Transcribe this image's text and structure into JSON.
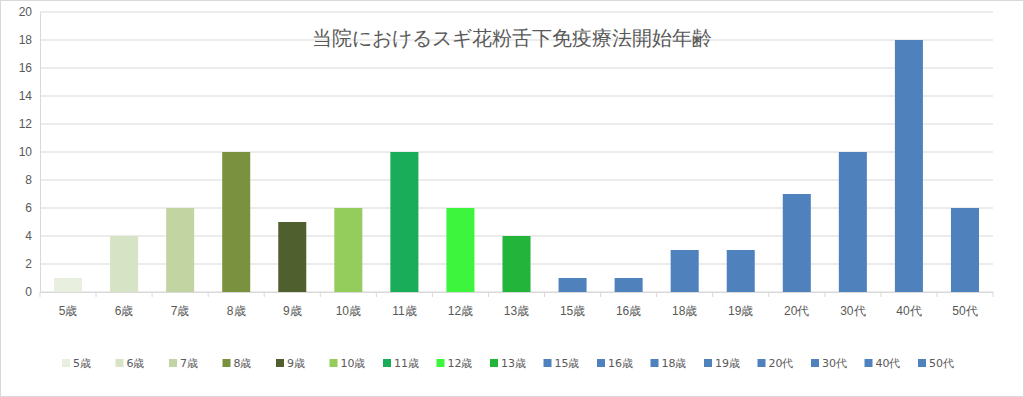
{
  "chart_data": {
    "type": "bar",
    "title": "当院におけるスギ花粉舌下免疫療法開始年齢",
    "categories": [
      "5歳",
      "6歳",
      "7歳",
      "8歳",
      "9歳",
      "10歳",
      "11歳",
      "12歳",
      "13歳",
      "15歳",
      "16歳",
      "18歳",
      "19歳",
      "20代",
      "30代",
      "40代",
      "50代"
    ],
    "values": [
      1,
      4,
      6,
      10,
      5,
      6,
      10,
      6,
      4,
      1,
      1,
      3,
      3,
      7,
      10,
      18,
      6
    ],
    "colors": [
      "#e8efdf",
      "#d6e3c5",
      "#c3d4a3",
      "#7a923f",
      "#4f5f2d",
      "#94cd5b",
      "#1aad59",
      "#3cf53c",
      "#22b43b",
      "#4f81bd",
      "#4f81bd",
      "#4f81bd",
      "#4f81bd",
      "#4f81bd",
      "#4f81bd",
      "#4f81bd",
      "#4f81bd"
    ],
    "ylim": [
      0,
      20
    ],
    "yticks": [
      0,
      2,
      4,
      6,
      8,
      10,
      12,
      14,
      16,
      18,
      20
    ],
    "grid": true,
    "legend": "bottom"
  }
}
